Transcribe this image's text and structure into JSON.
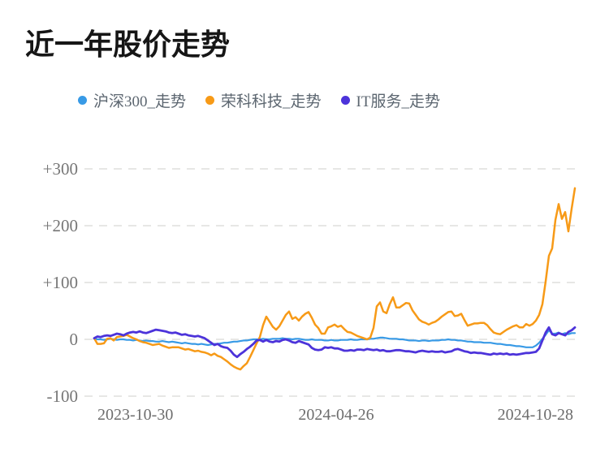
{
  "title": "近一年股价走势",
  "legend": {
    "items": [
      {
        "label": "沪深300_走势",
        "color": "#389ae6"
      },
      {
        "label": "荣科科技_走势",
        "color": "#f79a17"
      },
      {
        "label": "IT服务_走势",
        "color": "#4c33da"
      }
    ]
  },
  "chart_data": {
    "type": "line",
    "title": "近一年股价走势",
    "x_range": [
      "2023-10-30",
      "2024-10-28"
    ],
    "x_tick_labels": [
      "2023-10-30",
      "2024-04-26",
      "2024-10-28"
    ],
    "y_ticks": [
      300,
      200,
      100,
      0,
      -100
    ],
    "y_tick_labels": [
      "+300",
      "+200",
      "+100",
      "0",
      "-100"
    ],
    "ylim": [
      -100,
      300
    ],
    "unit": "percent change vs start",
    "grid": "horizontal dashed lines",
    "legend_position": "top",
    "series": [
      {
        "name": "沪深300_走势",
        "color": "#389ae6",
        "width": 2.2,
        "values": [
          1,
          0,
          0,
          -1,
          0,
          1,
          0,
          -1,
          0,
          0,
          -1,
          -1,
          -2,
          -1,
          -2,
          -3,
          -2,
          -3,
          -3,
          -4,
          -4,
          -3,
          -4,
          -5,
          -4,
          -5,
          -6,
          -7,
          -6,
          -7,
          -8,
          -8,
          -9,
          -8,
          -9,
          -10,
          -9,
          -8,
          -8,
          -7,
          -6,
          -6,
          -5,
          -4,
          -4,
          -3,
          -2,
          -2,
          -1,
          0,
          0,
          0,
          1,
          0,
          0,
          1,
          1,
          1,
          2,
          1,
          1,
          0,
          1,
          1,
          0,
          -1,
          -1,
          0,
          -1,
          -1,
          -1,
          -2,
          -2,
          -1,
          -2,
          -2,
          -1,
          -1,
          -1,
          0,
          -1,
          -1,
          0,
          0,
          0,
          1,
          1,
          2,
          3,
          3,
          2,
          1,
          1,
          1,
          0,
          0,
          -1,
          -2,
          -2,
          -2,
          -3,
          -2,
          -2,
          -3,
          -2,
          -2,
          -2,
          -1,
          -1,
          0,
          -1,
          -1,
          -2,
          -2,
          -3,
          -4,
          -4,
          -5,
          -5,
          -5,
          -6,
          -6,
          -6,
          -7,
          -8,
          -8,
          -9,
          -10,
          -10,
          -11,
          -12,
          -12,
          -13,
          -14,
          -14,
          -14,
          -11,
          -6,
          1,
          8,
          16,
          10,
          10,
          12,
          9,
          11,
          9,
          11,
          11
        ]
      },
      {
        "name": "荣科科技_走势",
        "color": "#f79a17",
        "width": 2.5,
        "values": [
          2,
          -8,
          -8,
          -7,
          1,
          2,
          -2,
          4,
          5,
          6,
          8,
          5,
          2,
          0,
          -3,
          -5,
          -6,
          -8,
          -10,
          -9,
          -8,
          -11,
          -13,
          -15,
          -14,
          -14,
          -14,
          -16,
          -18,
          -17,
          -19,
          -21,
          -20,
          -22,
          -23,
          -25,
          -28,
          -25,
          -29,
          -31,
          -35,
          -39,
          -44,
          -48,
          -51,
          -53,
          -47,
          -42,
          -31,
          -19,
          -7,
          4,
          25,
          40,
          31,
          22,
          17,
          23,
          33,
          43,
          49,
          36,
          39,
          33,
          40,
          45,
          48,
          38,
          26,
          20,
          10,
          10,
          21,
          23,
          26,
          22,
          24,
          18,
          13,
          12,
          9,
          6,
          4,
          2,
          0,
          3,
          20,
          58,
          65,
          49,
          46,
          62,
          74,
          56,
          56,
          60,
          64,
          63,
          51,
          43,
          35,
          31,
          29,
          26,
          29,
          31,
          35,
          40,
          44,
          48,
          49,
          41,
          42,
          45,
          34,
          24,
          26,
          28,
          28,
          29,
          29,
          25,
          18,
          12,
          10,
          9,
          13,
          17,
          20,
          23,
          25,
          21,
          21,
          27,
          24,
          27,
          33,
          43,
          62,
          102,
          147,
          160,
          210,
          238,
          212,
          224,
          190,
          230,
          266
        ]
      },
      {
        "name": "IT服务_走势",
        "color": "#4c33da",
        "width": 2.8,
        "values": [
          2,
          5,
          4,
          6,
          7,
          6,
          8,
          10,
          9,
          7,
          10,
          12,
          13,
          12,
          14,
          12,
          11,
          13,
          15,
          17,
          16,
          15,
          14,
          12,
          11,
          12,
          10,
          8,
          9,
          7,
          6,
          5,
          6,
          4,
          2,
          -2,
          -6,
          -10,
          -8,
          -12,
          -14,
          -15,
          -20,
          -27,
          -31,
          -26,
          -22,
          -17,
          -13,
          -8,
          -2,
          -1,
          -4,
          -1,
          -4,
          -5,
          -3,
          -4,
          -1,
          0,
          -2,
          -5,
          -6,
          -3,
          -5,
          -7,
          -9,
          -15,
          -18,
          -19,
          -18,
          -14,
          -15,
          -14,
          -16,
          -16,
          -18,
          -20,
          -20,
          -19,
          -20,
          -18,
          -18,
          -19,
          -17,
          -18,
          -19,
          -18,
          -20,
          -19,
          -21,
          -21,
          -20,
          -19,
          -19,
          -20,
          -21,
          -21,
          -22,
          -23,
          -21,
          -20,
          -21,
          -22,
          -21,
          -22,
          -22,
          -21,
          -23,
          -22,
          -21,
          -18,
          -17,
          -19,
          -21,
          -22,
          -24,
          -23,
          -24,
          -24,
          -25,
          -26,
          -27,
          -25,
          -26,
          -25,
          -26,
          -25,
          -27,
          -26,
          -27,
          -26,
          -25,
          -24,
          -24,
          -23,
          -22,
          -16,
          -2,
          12,
          21,
          9,
          7,
          11,
          9,
          7,
          13,
          16,
          21
        ]
      }
    ]
  },
  "colors": {
    "background": "#ffffff",
    "title_text": "#161616",
    "legend_text": "#5c6670",
    "axis_text": "#767676",
    "gridline": "#e7e7e5"
  }
}
